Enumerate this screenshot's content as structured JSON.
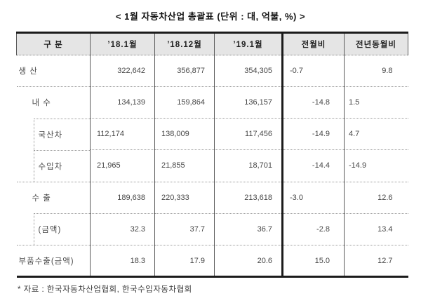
{
  "title": "< 1월 자동차산업 총괄표 (단위 : 대, 억불, %) >",
  "table": {
    "headers": {
      "category": "구 분",
      "m18_01": "’18.1월",
      "m18_12": "’18.12월",
      "m19_01": "’19.1월",
      "mom": "전월비",
      "yoy": "전년동월비"
    },
    "rows": [
      {
        "label": "생 산",
        "v18_1": "322,642",
        "v18_12": "356,877",
        "v19_1": "354,305",
        "mom": "-0.7",
        "yoy": "9.8"
      },
      {
        "label": "내 수",
        "v18_1": "134,139",
        "v18_12": "159,864",
        "v19_1": "136,157",
        "mom": "-14.8",
        "yoy": "1.5"
      },
      {
        "label": "국산차",
        "v18_1": "112,174",
        "v18_12": "138,009",
        "v19_1": "117,456",
        "mom": "-14.9",
        "yoy": "4.7"
      },
      {
        "label": "수입차",
        "v18_1": "21,965",
        "v18_12": "21,855",
        "v19_1": "18,701",
        "mom": "-14.4",
        "yoy": "-14.9"
      },
      {
        "label": "수 출",
        "v18_1": "189,638",
        "v18_12": "220,333",
        "v19_1": "213,618",
        "mom": "-3.0",
        "yoy": "12.6"
      },
      {
        "label": "(금액)",
        "v18_1": "32.3",
        "v18_12": "37.7",
        "v19_1": "36.7",
        "mom": "-2.8",
        "yoy": "13.4"
      },
      {
        "label": "부품수출(금액)",
        "v18_1": "18.3",
        "v18_12": "17.9",
        "v19_1": "20.6",
        "mom": "15.0",
        "yoy": "12.7"
      }
    ]
  },
  "footnote": "* 자료 : 한국자동차산업협회, 한국수입자동차협회",
  "colors": {
    "header_bg": "#e5e5e5",
    "border_thick": "#1b1b1b",
    "border_thin": "#5a5a5a",
    "border_dotted": "#9a9a9a",
    "text": "#474747"
  }
}
